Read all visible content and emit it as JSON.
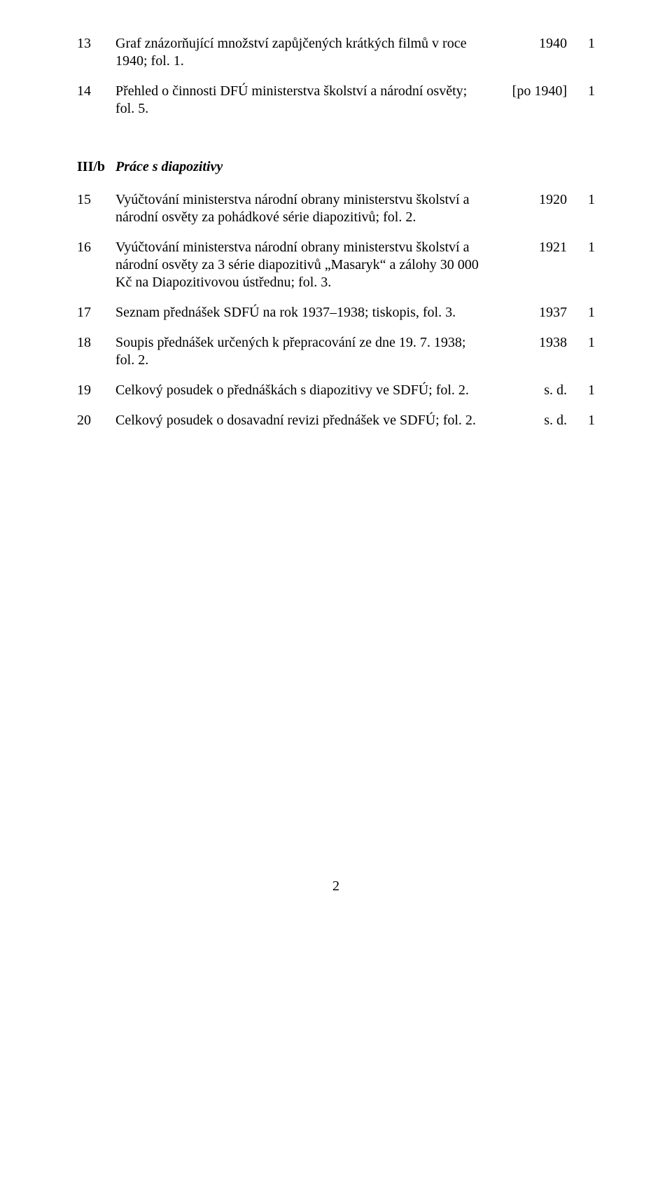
{
  "top_rows": [
    {
      "num": "13",
      "desc": "Graf znázorňující množství zapůjčených krátkých filmů v roce 1940; fol. 1.",
      "year": "1940",
      "count": "1"
    },
    {
      "num": "14",
      "desc": "Přehled o činnosti DFÚ ministerstva školství a národní osvěty; fol. 5.",
      "year": "[po 1940]",
      "count": "1"
    }
  ],
  "section": {
    "code": "III/b",
    "title": "Práce s diapozitivy"
  },
  "rows": [
    {
      "num": "15",
      "desc": "Vyúčtování ministerstva národní obrany ministerstvu školství a národní osvěty za pohádkové série diapozitivů; fol. 2.",
      "year": "1920",
      "count": "1"
    },
    {
      "num": "16",
      "desc": "Vyúčtování ministerstva národní obrany ministerstvu školství a národní osvěty za 3 série diapozitivů „Masaryk“ a zálohy 30 000 Kč na Diapozitivovou ústřednu; fol. 3.",
      "year": "1921",
      "count": "1"
    },
    {
      "num": "17",
      "desc": "Seznam přednášek SDFÚ na rok 1937–1938; tiskopis, fol. 3.",
      "year": "1937",
      "count": "1"
    },
    {
      "num": "18",
      "desc": "Soupis přednášek určených k přepracování ze dne 19. 7. 1938; fol. 2.",
      "year": "1938",
      "count": "1"
    },
    {
      "num": "19",
      "desc": "Celkový posudek o přednáškách s diapozitivy ve SDFÚ; fol. 2.",
      "year": "s. d.",
      "count": "1"
    },
    {
      "num": "20",
      "desc": "Celkový posudek o dosavadní revizi přednášek ve SDFÚ; fol. 2.",
      "year": "s. d.",
      "count": "1"
    }
  ],
  "page_number": "2"
}
